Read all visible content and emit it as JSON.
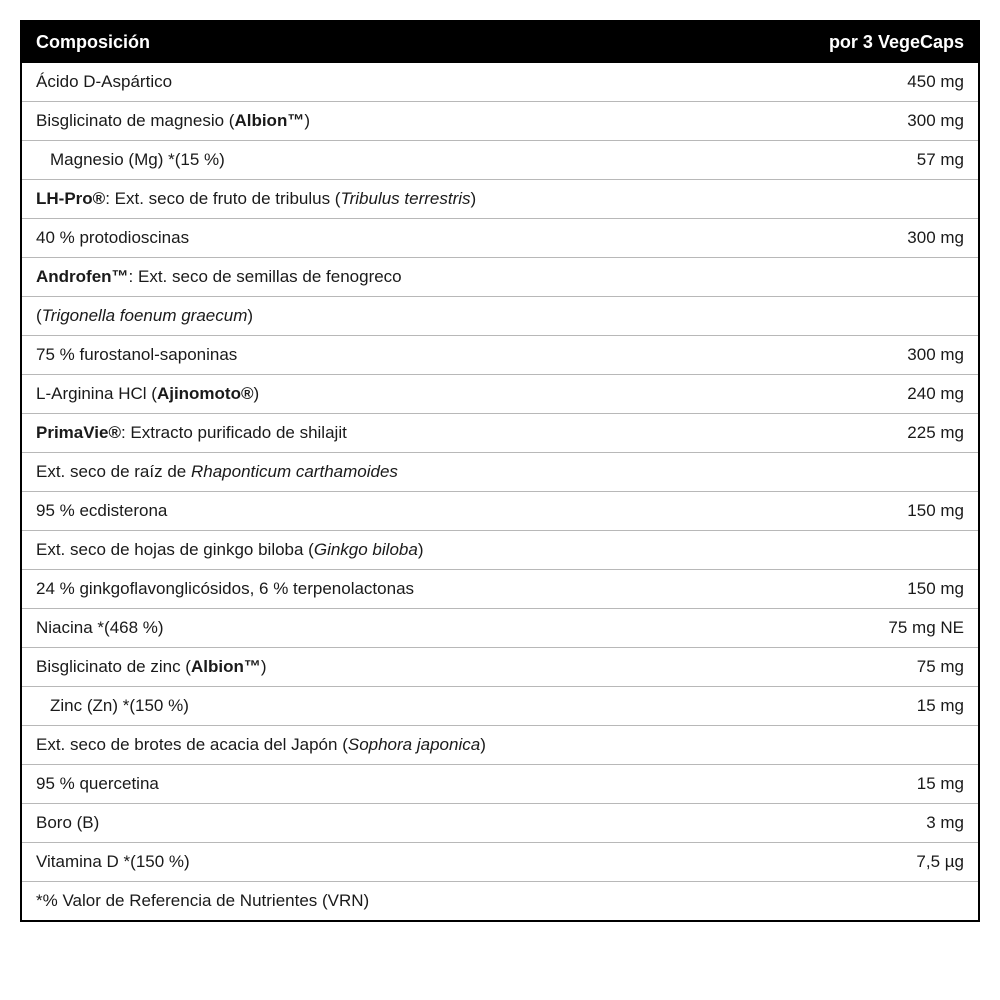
{
  "header": {
    "left": "Composición",
    "right": "por 3 VegeCaps"
  },
  "rows": [
    {
      "name_html": "Ácido D-Aspártico",
      "value": "450 mg"
    },
    {
      "name_html": "Bisglicinato de magnesio (<span class='b'>Albion™</span>)",
      "value": "300 mg"
    },
    {
      "name_html": "<span class='indent' style='display:inline-block'></span>Magnesio (Mg) *(15 %)",
      "value": "57 mg",
      "indent": true
    },
    {
      "name_html": "<span class='b'>LH-Pro®</span>: Ext. seco de fruto de tribulus (<span class='i'>Tribulus terrestris</span>)",
      "value": ""
    },
    {
      "name_html": "40 % protodioscinas",
      "value": "300 mg"
    },
    {
      "name_html": "<span class='b'>Androfen™</span>: Ext. seco de semillas de fenogreco",
      "value": ""
    },
    {
      "name_html": "(<span class='i'>Trigonella foenum graecum</span>)",
      "value": ""
    },
    {
      "name_html": "75 % furostanol-saponinas",
      "value": "300 mg"
    },
    {
      "name_html": "L-Arginina HCl (<span class='b'>Ajinomoto®</span>)",
      "value": "240 mg"
    },
    {
      "name_html": "<span class='b'>PrimaVie®</span>: Extracto purificado de shilajit",
      "value": "225 mg"
    },
    {
      "name_html": "Ext. seco de raíz de <span class='i'>Rhaponticum carthamoides</span>",
      "value": ""
    },
    {
      "name_html": "95 % ecdisterona",
      "value": "150 mg"
    },
    {
      "name_html": "Ext. seco de hojas de ginkgo biloba (<span class='i'>Ginkgo biloba</span>)",
      "value": ""
    },
    {
      "name_html": "24 % ginkgoflavonglicósidos, 6 % terpenolactonas",
      "value": "150 mg"
    },
    {
      "name_html": "Niacina *(468 %)",
      "value": "75 mg NE"
    },
    {
      "name_html": "Bisglicinato de zinc (<span class='b'>Albion™</span>)",
      "value": "75 mg"
    },
    {
      "name_html": "<span class='indent' style='display:inline-block'></span>Zinc (Zn) *(150 %)",
      "value": "15 mg",
      "indent": true
    },
    {
      "name_html": "Ext. seco de brotes de acacia del Japón (<span class='i'>Sophora japonica</span>)",
      "value": ""
    },
    {
      "name_html": "95 % quercetina",
      "value": "15 mg"
    },
    {
      "name_html": "Boro (B)",
      "value": "3 mg"
    },
    {
      "name_html": "Vitamina D *(150 %)",
      "value": "7,5 µg"
    },
    {
      "name_html": "*% Valor de Referencia de Nutrientes (VRN)",
      "value": ""
    }
  ],
  "style": {
    "border_color": "#000000",
    "row_border_color": "#b8b8b8",
    "header_bg": "#000000",
    "header_fg": "#ffffff",
    "body_fg": "#1a1a1a",
    "font_size_header": 18,
    "font_size_body": 17
  }
}
